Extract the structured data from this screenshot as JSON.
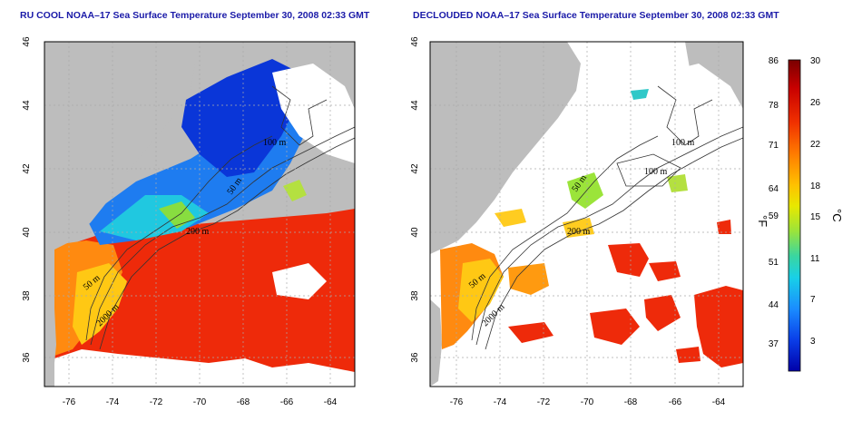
{
  "panels": [
    {
      "title": "RU COOL NOAA–17 Sea Surface Temperature September 30, 2008 02:33 GMT",
      "contour_labels": [
        "100 m",
        "50 m",
        "200 m",
        "50 m",
        "2000 m"
      ]
    },
    {
      "title": "DECLOUDED NOAA–17 Sea Surface Temperature September 30, 2008 02:33 GMT",
      "contour_labels": [
        "100 m",
        "100 m",
        "50 m",
        "200 m",
        "50 m",
        "2000 m"
      ]
    }
  ],
  "x_ticks": [
    "-76",
    "-74",
    "-72",
    "-70",
    "-68",
    "-66",
    "-64"
  ],
  "y_ticks": [
    "46",
    "44",
    "42",
    "40",
    "38",
    "36"
  ],
  "colorbar": {
    "unit_f": "°F",
    "unit_c": "°C",
    "f_ticks": [
      "86",
      "78",
      "71",
      "64",
      "59",
      "51",
      "44",
      "37"
    ],
    "c_ticks": [
      "30",
      "26",
      "22",
      "18",
      "15",
      "11",
      "7",
      "3"
    ],
    "colors": [
      "#7a0000",
      "#c80000",
      "#f03000",
      "#ff7a00",
      "#ffc000",
      "#e8e800",
      "#9be43a",
      "#3ad6a0",
      "#18d0e8",
      "#1a8cff",
      "#0a3ee8",
      "#0000a8"
    ]
  },
  "colors": {
    "land": "#bdbdbd",
    "cloud": "#ffffff",
    "title": "#1a1aa8",
    "frame": "#000000",
    "grid": "#aaaaaa"
  }
}
